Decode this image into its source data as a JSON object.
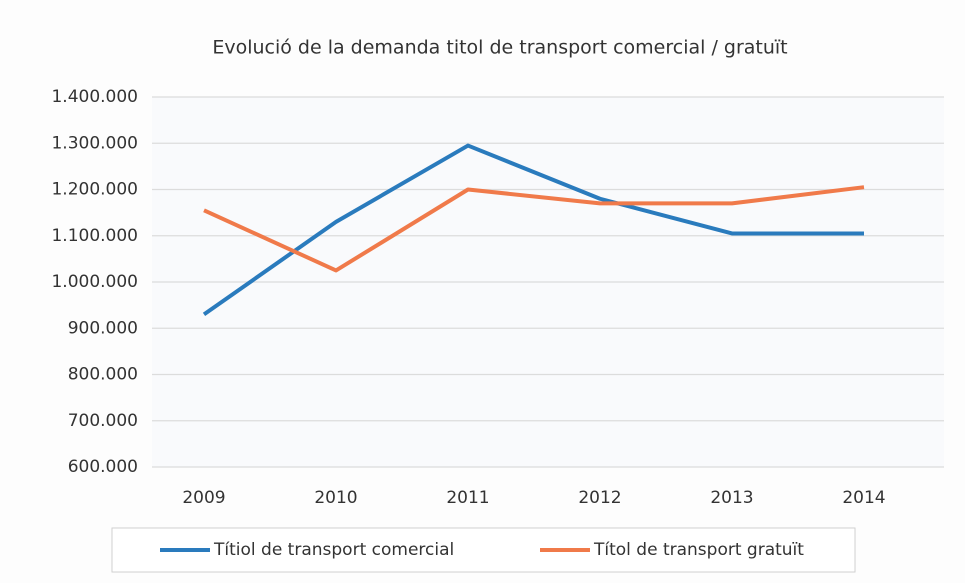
{
  "chart_data": {
    "type": "line",
    "title": "Evolució de la demanda titol de transport comercial / gratuït",
    "categories": [
      "2009",
      "2010",
      "2011",
      "2012",
      "2013",
      "2014"
    ],
    "series": [
      {
        "name": "Títiol de transport comercial",
        "color": "#2a7bbd",
        "values": [
          930000,
          1130000,
          1295000,
          1180000,
          1105000,
          1105000
        ]
      },
      {
        "name": "Títol de transport gratuït",
        "color": "#f07a4a",
        "values": [
          1155000,
          1025000,
          1200000,
          1170000,
          1170000,
          1205000
        ]
      }
    ],
    "ylim": [
      600000,
      1400000
    ],
    "yticks": [
      {
        "value": 600000,
        "label": "600.000"
      },
      {
        "value": 700000,
        "label": "700.000"
      },
      {
        "value": 800000,
        "label": "800.000"
      },
      {
        "value": 900000,
        "label": "900.000"
      },
      {
        "value": 1000000,
        "label": "1.000.000"
      },
      {
        "value": 1100000,
        "label": "1.100.000"
      },
      {
        "value": 1200000,
        "label": "1.200.000"
      },
      {
        "value": 1300000,
        "label": "1.300.000"
      },
      {
        "value": 1400000,
        "label": "1.400.000"
      }
    ],
    "grid": true,
    "legend": "bottom"
  }
}
